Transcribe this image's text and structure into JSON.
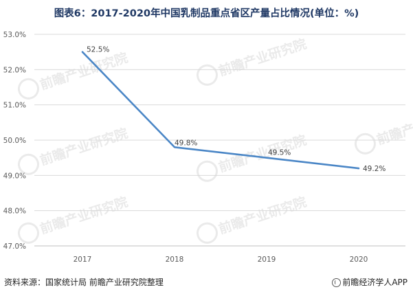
{
  "title": "图表6：2017-2020年中国乳制品重点省区产量占比情况(单位：%)",
  "source": "资料来源：国家统计局 前瞻产业研究院整理",
  "brand": "前瞻经济学人APP",
  "watermark": "前瞻产业研究院",
  "colors": {
    "line": "#4a86c6",
    "grid": "#d9d9d9",
    "axis": "#bfbfbf",
    "title": "#1f3864"
  },
  "chart_data": {
    "type": "line",
    "categories": [
      "2017",
      "2018",
      "2019",
      "2020"
    ],
    "values": [
      52.5,
      49.8,
      49.5,
      49.2
    ],
    "data_labels": [
      "52.5%",
      "49.8%",
      "49.5%",
      "49.2%"
    ],
    "ylim": [
      47.0,
      53.0
    ],
    "yticks": [
      53.0,
      52.0,
      51.0,
      50.0,
      49.0,
      48.0,
      47.0
    ],
    "ytick_labels": [
      "53.0%",
      "52.0%",
      "51.0%",
      "50.0%",
      "49.0%",
      "48.0%",
      "47.0%"
    ],
    "grid": true,
    "legend": "none"
  }
}
